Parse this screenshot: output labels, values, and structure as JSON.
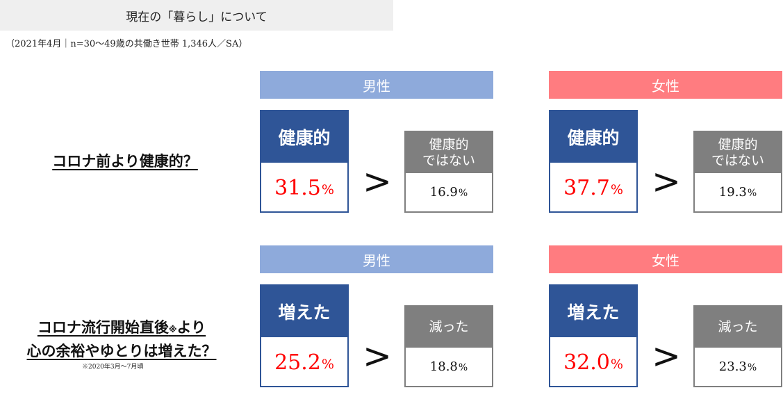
{
  "header": {
    "title": "現在の「暮らし」について",
    "subtitle": "（2021年4月｜n=30～49歳の共働き世帯 1,346人／SA）"
  },
  "gt_symbol": ">",
  "questions": [
    {
      "text": "コロナ前より健康的？",
      "male": {
        "gender_label": "男性",
        "main_label": "健康的",
        "main_value": "31.5",
        "main_unit": "%",
        "other_label": "健康的\nではない",
        "other_value": "16.9",
        "other_unit": "%"
      },
      "female": {
        "gender_label": "女性",
        "main_label": "健康的",
        "main_value": "37.7",
        "main_unit": "%",
        "other_label": "健康的\nではない",
        "other_value": "19.3",
        "other_unit": "%"
      }
    },
    {
      "text_line1": "コロナ流行開始直後",
      "text_note_mark": "※",
      "text_line1_end": "より",
      "text_line2": "心の余裕やゆとりは増えた？",
      "footnote": "※2020年3月～7月頃",
      "male": {
        "gender_label": "男性",
        "main_label": "増えた",
        "main_value": "25.2",
        "main_unit": "%",
        "other_label": "減った",
        "other_value": "18.8",
        "other_unit": "%"
      },
      "female": {
        "gender_label": "女性",
        "main_label": "増えた",
        "main_value": "32.0",
        "main_unit": "%",
        "other_label": "減った",
        "other_value": "23.3",
        "other_unit": "%"
      }
    }
  ],
  "colors": {
    "male": "#8eaadb",
    "female": "#ff7c80",
    "main_box": "#2f5597",
    "other_box": "#7f7f7f",
    "highlight_value": "#ff0000"
  }
}
